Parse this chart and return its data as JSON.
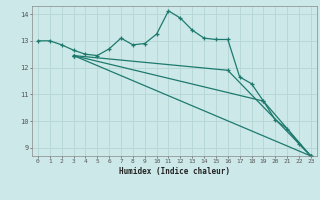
{
  "bg_color": "#cce8e8",
  "line_color": "#1e7a6e",
  "grid_color": "#b8d8d8",
  "xlabel": "Humidex (Indice chaleur)",
  "xlim": [
    -0.5,
    23.5
  ],
  "ylim": [
    8.7,
    14.3
  ],
  "xticks": [
    0,
    1,
    2,
    3,
    4,
    5,
    6,
    7,
    8,
    9,
    10,
    11,
    12,
    13,
    14,
    15,
    16,
    17,
    18,
    19,
    20,
    21,
    22,
    23
  ],
  "yticks": [
    9,
    10,
    11,
    12,
    13,
    14
  ],
  "line1_x": [
    0,
    1,
    2,
    3,
    4,
    5,
    6,
    7,
    8,
    9,
    10,
    11,
    12,
    13,
    14,
    15,
    16,
    17,
    18,
    19,
    20,
    21,
    22,
    23
  ],
  "line1_y": [
    13.0,
    13.0,
    12.85,
    12.65,
    12.5,
    12.45,
    12.7,
    13.1,
    12.85,
    12.9,
    13.25,
    14.12,
    13.85,
    13.4,
    13.1,
    13.05,
    13.05,
    11.65,
    11.4,
    10.75,
    10.05,
    9.72,
    9.15,
    8.7
  ],
  "line2_x": [
    3,
    23
  ],
  "line2_y": [
    12.45,
    8.7
  ],
  "line3_x": [
    3,
    19,
    23
  ],
  "line3_y": [
    12.45,
    10.75,
    8.7
  ],
  "line4_x": [
    3,
    16,
    23
  ],
  "line4_y": [
    12.45,
    11.9,
    8.7
  ]
}
